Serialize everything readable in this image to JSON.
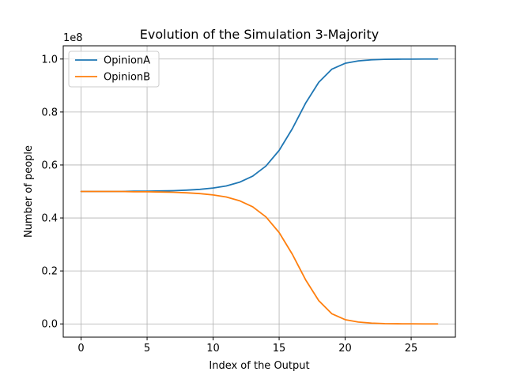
{
  "chart_data": {
    "type": "line",
    "title": "Evolution of the Simulation 3-Majority",
    "xlabel": "Index of the Output",
    "ylabel": "Number of people",
    "y_offset_label": "1e8",
    "xlim": [
      -1.35,
      28.35
    ],
    "ylim": [
      -0.05,
      1.05
    ],
    "x_ticks": [
      0,
      5,
      10,
      15,
      20,
      25
    ],
    "x_tick_labels": [
      "0",
      "5",
      "10",
      "15",
      "20",
      "25"
    ],
    "y_ticks": [
      0.0,
      0.2,
      0.4,
      0.6,
      0.8,
      1.0
    ],
    "y_tick_labels": [
      "0.0",
      "0.2",
      "0.4",
      "0.6",
      "0.8",
      "1.0"
    ],
    "grid": true,
    "legend_position": "top-left",
    "x": [
      0,
      1,
      2,
      3,
      4,
      5,
      6,
      7,
      8,
      9,
      10,
      11,
      12,
      13,
      14,
      15,
      16,
      17,
      18,
      19,
      20,
      21,
      22,
      23,
      24,
      25,
      26,
      27
    ],
    "series": [
      {
        "name": "OpinionA",
        "color": "#1f77b4",
        "values": [
          0.5,
          0.5,
          0.5,
          0.5,
          0.501,
          0.501,
          0.502,
          0.503,
          0.505,
          0.508,
          0.513,
          0.521,
          0.535,
          0.558,
          0.596,
          0.655,
          0.737,
          0.833,
          0.912,
          0.962,
          0.984,
          0.993,
          0.997,
          0.999,
          0.9995,
          0.9998,
          1.0,
          1.0
        ]
      },
      {
        "name": "OpinionB",
        "color": "#ff7f0e",
        "values": [
          0.5,
          0.5,
          0.5,
          0.5,
          0.499,
          0.499,
          0.498,
          0.497,
          0.495,
          0.492,
          0.487,
          0.479,
          0.465,
          0.442,
          0.404,
          0.345,
          0.263,
          0.167,
          0.088,
          0.038,
          0.016,
          0.007,
          0.003,
          0.001,
          0.0005,
          0.0002,
          0.0,
          0.0
        ]
      }
    ]
  }
}
